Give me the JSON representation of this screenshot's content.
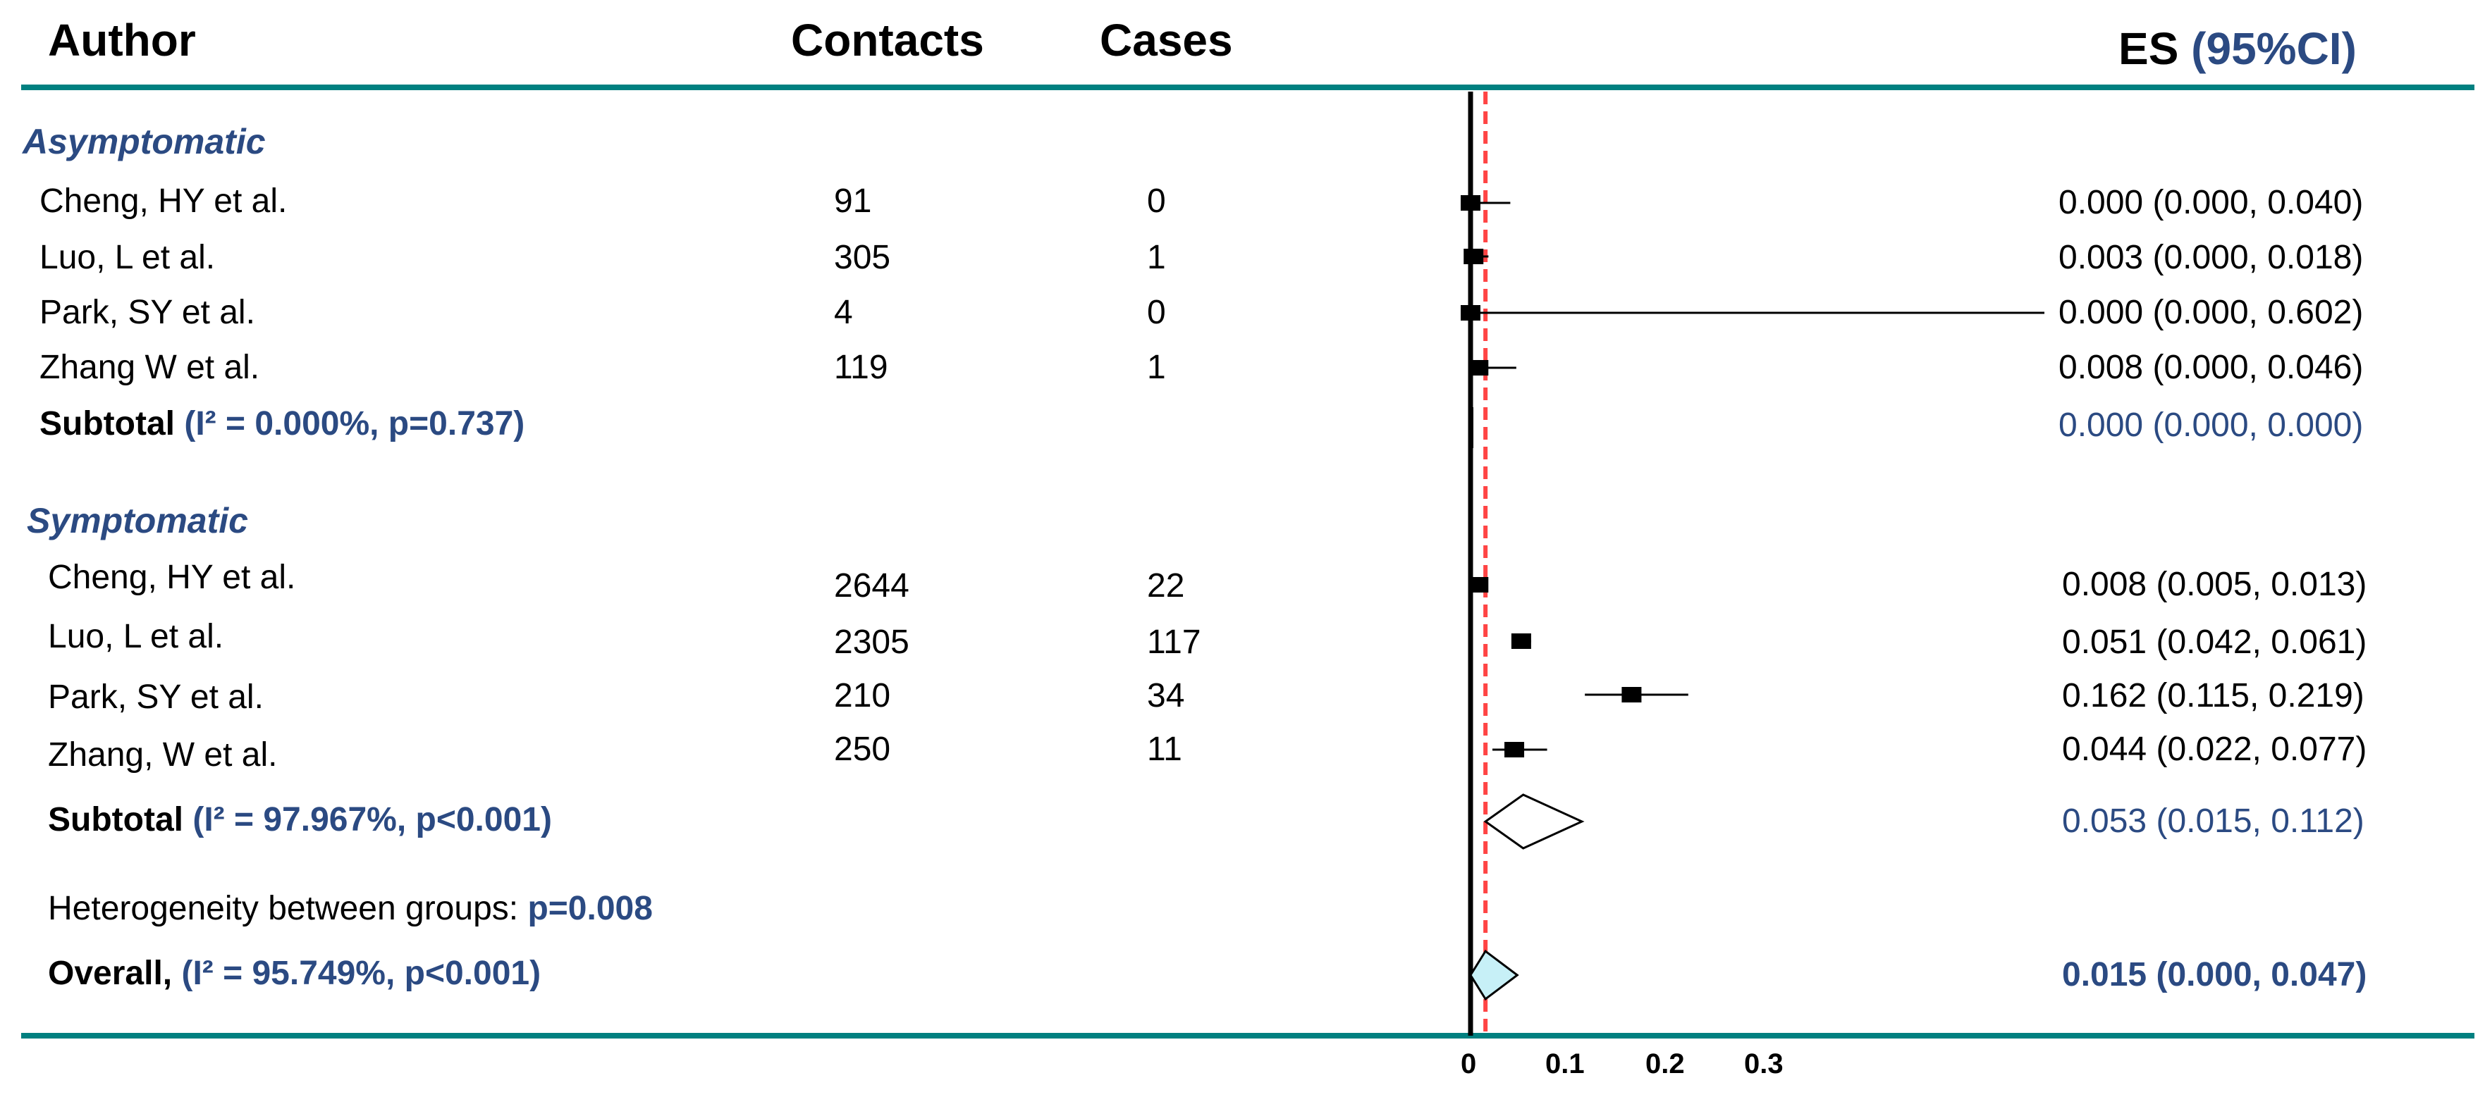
{
  "header": {
    "author": "Author",
    "contacts": "Contacts",
    "cases": "Cases",
    "es_prefix": "ES",
    "es_ci": "(95%CI)"
  },
  "groups": [
    {
      "label": "Asymptomatic",
      "studies": [
        {
          "author": "Cheng, HY et al.",
          "contacts": "91",
          "cases": "0",
          "es_text": "0.000 (0.000, 0.040)"
        },
        {
          "author": "Luo, L et al.",
          "contacts": "305",
          "cases": "1",
          "es_text": "0.003 (0.000, 0.018)"
        },
        {
          "author": "Park, SY et al.",
          "contacts": "4",
          "cases": "0",
          "es_text": "0.000 (0.000, 0.602)"
        },
        {
          "author": "Zhang W et al.",
          "contacts": "119",
          "cases": "1",
          "es_text": "0.008 (0.000, 0.046)"
        }
      ],
      "subtotal": {
        "label": "Subtotal",
        "stat": "(I² = 0.000%, p=0.737)",
        "es_text": "0.000 (0.000, 0.000)"
      }
    },
    {
      "label": "Symptomatic",
      "studies": [
        {
          "author": "Cheng, HY et al.",
          "contacts": "2644",
          "cases": "22",
          "es_text": "0.008 (0.005, 0.013)"
        },
        {
          "author": "Luo, L et al.",
          "contacts": "2305",
          "cases": "117",
          "es_text": "0.051 (0.042, 0.061)"
        },
        {
          "author": "Park, SY et al.",
          "contacts": "210",
          "cases": "34",
          "es_text": "0.162 (0.115, 0.219)"
        },
        {
          "author": "Zhang, W et al.",
          "contacts": "250",
          "cases": "11",
          "es_text": "0.044 (0.022, 0.077)"
        }
      ],
      "subtotal": {
        "label": "Subtotal",
        "stat": "(I² = 97.967%, p<0.001)",
        "es_text": "0.053 (0.015, 0.112)"
      }
    }
  ],
  "heterogeneity": {
    "label": "Heterogeneity between groups:",
    "p": "p=0.008"
  },
  "overall": {
    "label": "Overall,",
    "stat": "(I² = 95.749%, p<0.001)",
    "es_text": "0.015 (0.000, 0.047)"
  },
  "colors": {
    "rule": "#008080",
    "group_label": "#2b4a82",
    "reference_line": "#ff4444",
    "overall_diamond": "#c7f0f7",
    "marker": "#000000"
  },
  "chart_data": {
    "type": "forest",
    "x_ticks": [
      "0",
      "0.1",
      "0.2",
      "0.3"
    ],
    "xlim": [
      0,
      0.3
    ],
    "null_line": 0,
    "overall_line": 0.015,
    "studies": [
      {
        "group": "Asymptomatic",
        "author": "Cheng, HY et al.",
        "es": 0.0,
        "lo": 0.0,
        "hi": 0.04
      },
      {
        "group": "Asymptomatic",
        "author": "Luo, L et al.",
        "es": 0.003,
        "lo": 0.0,
        "hi": 0.018
      },
      {
        "group": "Asymptomatic",
        "author": "Park, SY et al.",
        "es": 0.0,
        "lo": 0.0,
        "hi": 0.602
      },
      {
        "group": "Asymptomatic",
        "author": "Zhang W et al.",
        "es": 0.008,
        "lo": 0.0,
        "hi": 0.046
      },
      {
        "group": "Symptomatic",
        "author": "Cheng, HY et al.",
        "es": 0.008,
        "lo": 0.005,
        "hi": 0.013
      },
      {
        "group": "Symptomatic",
        "author": "Luo, L et al.",
        "es": 0.051,
        "lo": 0.042,
        "hi": 0.061
      },
      {
        "group": "Symptomatic",
        "author": "Park, SY et al.",
        "es": 0.162,
        "lo": 0.115,
        "hi": 0.219
      },
      {
        "group": "Symptomatic",
        "author": "Zhang, W et al.",
        "es": 0.044,
        "lo": 0.022,
        "hi": 0.077
      }
    ],
    "subtotals": [
      {
        "group": "Asymptomatic",
        "es": 0.0,
        "lo": 0.0,
        "hi": 0.0
      },
      {
        "group": "Symptomatic",
        "es": 0.053,
        "lo": 0.015,
        "hi": 0.112
      }
    ],
    "overall": {
      "es": 0.015,
      "lo": 0.0,
      "hi": 0.047
    }
  }
}
